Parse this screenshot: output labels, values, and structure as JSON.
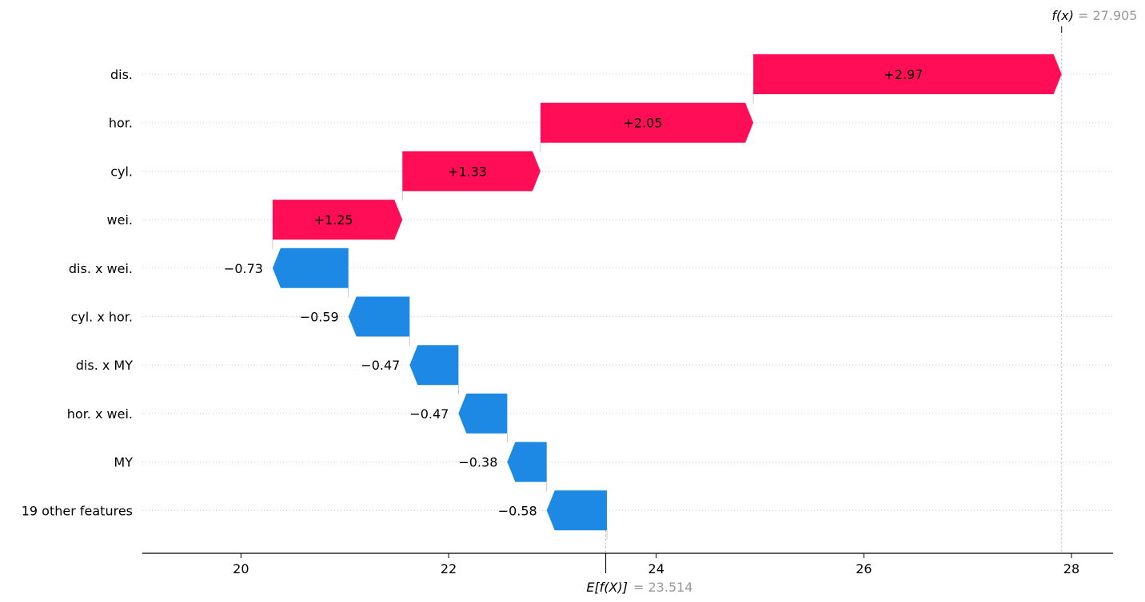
{
  "chart_data": {
    "type": "waterfall",
    "features": [
      {
        "name": "dis.",
        "value": 2.97,
        "label": "+2.97"
      },
      {
        "name": "hor.",
        "value": 2.05,
        "label": "+2.05"
      },
      {
        "name": "cyl.",
        "value": 1.33,
        "label": "+1.33"
      },
      {
        "name": "wei.",
        "value": 1.25,
        "label": "+1.25"
      },
      {
        "name": "dis. x wei.",
        "value": -0.73,
        "label": "−0.73"
      },
      {
        "name": "cyl. x hor.",
        "value": -0.59,
        "label": "−0.59"
      },
      {
        "name": "dis. x MY",
        "value": -0.47,
        "label": "−0.47"
      },
      {
        "name": "hor. x wei.",
        "value": -0.47,
        "label": "−0.47"
      },
      {
        "name": "MY",
        "value": -0.38,
        "label": "−0.38"
      },
      {
        "name": "19 other features",
        "value": -0.58,
        "label": "−0.58"
      }
    ],
    "base_value": 23.514,
    "output_value": 27.905,
    "base_label": "E[f(X)]",
    "base_value_text": "= 23.514",
    "output_label": "f(x)",
    "output_value_text": "= 27.905",
    "xlim": [
      19.05,
      28.4
    ],
    "xticks": [
      20,
      22,
      24,
      26,
      28
    ],
    "xtick_labels": [
      "20",
      "22",
      "24",
      "26",
      "28"
    ],
    "colors": {
      "positive": "#ff0d57",
      "negative": "#1e88e5",
      "grid": "#cccccc",
      "annotation": "#999999"
    }
  }
}
